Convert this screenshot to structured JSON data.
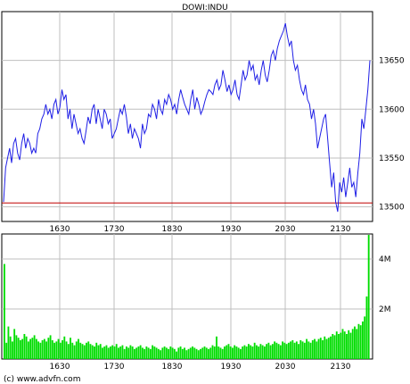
{
  "colors": {
    "price_line": "#1f1fe6",
    "reference_line": "#c00000",
    "volume_fill": "#00dd00",
    "grid": "#bfbfbf",
    "frame": "#000000"
  },
  "chart_data": [
    {
      "type": "line",
      "title": "DOWI:INDU",
      "x_ticks": [
        "1630",
        "1730",
        "1830",
        "1930",
        "2030",
        "2130"
      ],
      "y_ticks": [
        13500,
        13550,
        13600,
        13650
      ],
      "ylim": [
        13485,
        13700
      ],
      "reference_line": 13504,
      "grid": true,
      "series": [
        {
          "values": [
            13505,
            13540,
            13550,
            13560,
            13545,
            13565,
            13570,
            13555,
            13548,
            13565,
            13575,
            13560,
            13570,
            13565,
            13555,
            13560,
            13555,
            13575,
            13580,
            13590,
            13595,
            13605,
            13595,
            13600,
            13590,
            13605,
            13610,
            13595,
            13602,
            13620,
            13610,
            13615,
            13590,
            13600,
            13580,
            13595,
            13585,
            13575,
            13580,
            13570,
            13565,
            13578,
            13592,
            13585,
            13600,
            13605,
            13585,
            13600,
            13590,
            13580,
            13600,
            13595,
            13585,
            13590,
            13570,
            13575,
            13580,
            13590,
            13600,
            13595,
            13605,
            13592,
            13575,
            13585,
            13570,
            13580,
            13575,
            13570,
            13560,
            13585,
            13575,
            13580,
            13595,
            13592,
            13605,
            13600,
            13590,
            13610,
            13600,
            13595,
            13610,
            13605,
            13615,
            13610,
            13600,
            13605,
            13595,
            13610,
            13620,
            13612,
            13605,
            13600,
            13595,
            13610,
            13620,
            13600,
            13612,
            13605,
            13595,
            13600,
            13608,
            13615,
            13620,
            13618,
            13615,
            13625,
            13630,
            13620,
            13625,
            13640,
            13630,
            13618,
            13625,
            13615,
            13620,
            13630,
            13615,
            13610,
            13625,
            13640,
            13630,
            13635,
            13650,
            13640,
            13645,
            13630,
            13635,
            13625,
            13640,
            13650,
            13635,
            13628,
            13640,
            13655,
            13660,
            13650,
            13662,
            13670,
            13675,
            13680,
            13688,
            13675,
            13665,
            13670,
            13650,
            13640,
            13645,
            13630,
            13620,
            13615,
            13625,
            13610,
            13605,
            13590,
            13600,
            13585,
            13560,
            13570,
            13580,
            13590,
            13595,
            13570,
            13545,
            13520,
            13535,
            13505,
            13495,
            13525,
            13515,
            13530,
            13510,
            13525,
            13540,
            13520,
            13525,
            13510,
            13535,
            13555,
            13590,
            13580,
            13600,
            13620,
            13650
          ]
        }
      ]
    },
    {
      "type": "bar",
      "x_ticks": [
        "1630",
        "1730",
        "1830",
        "1930",
        "2030",
        "2130"
      ],
      "y_ticks": [
        "2M",
        "4M"
      ],
      "y_tick_values": [
        2000000,
        4000000
      ],
      "ylim": [
        0,
        5000000
      ],
      "grid": true,
      "series": [
        {
          "values": [
            3800000,
            650000,
            1300000,
            900000,
            700000,
            1200000,
            950000,
            850000,
            750000,
            800000,
            1000000,
            900000,
            700000,
            800000,
            850000,
            950000,
            800000,
            700000,
            650000,
            750000,
            800000,
            700000,
            850000,
            950000,
            750000,
            650000,
            700000,
            800000,
            650000,
            750000,
            900000,
            700000,
            600000,
            850000,
            650000,
            550000,
            700000,
            800000,
            650000,
            600000,
            550000,
            650000,
            700000,
            600000,
            550000,
            500000,
            650000,
            550000,
            600000,
            450000,
            500000,
            550000,
            450000,
            500000,
            550000,
            500000,
            600000,
            450000,
            500000,
            550000,
            400000,
            500000,
            450000,
            550000,
            500000,
            400000,
            450000,
            500000,
            550000,
            450000,
            400000,
            500000,
            450000,
            400000,
            550000,
            500000,
            450000,
            400000,
            350000,
            450000,
            500000,
            450000,
            400000,
            500000,
            450000,
            400000,
            300000,
            450000,
            500000,
            400000,
            450000,
            350000,
            400000,
            450000,
            500000,
            450000,
            400000,
            350000,
            400000,
            450000,
            500000,
            450000,
            400000,
            450000,
            550000,
            500000,
            900000,
            500000,
            450000,
            400000,
            500000,
            550000,
            600000,
            500000,
            450000,
            550000,
            500000,
            450000,
            400000,
            500000,
            550000,
            500000,
            600000,
            550000,
            500000,
            650000,
            550000,
            500000,
            600000,
            550000,
            500000,
            600000,
            650000,
            550000,
            600000,
            700000,
            650000,
            600000,
            550000,
            700000,
            650000,
            600000,
            650000,
            700000,
            750000,
            650000,
            700000,
            600000,
            750000,
            700000,
            650000,
            800000,
            700000,
            650000,
            750000,
            800000,
            700000,
            800000,
            850000,
            750000,
            900000,
            800000,
            850000,
            900000,
            1000000,
            950000,
            1100000,
            1000000,
            1050000,
            1200000,
            1100000,
            1000000,
            1150000,
            1050000,
            1200000,
            1300000,
            1200000,
            1400000,
            1350000,
            1500000,
            1700000,
            2500000,
            5200000
          ]
        }
      ]
    }
  ],
  "footer": {
    "copyright": "(c) www.advfn.com"
  }
}
